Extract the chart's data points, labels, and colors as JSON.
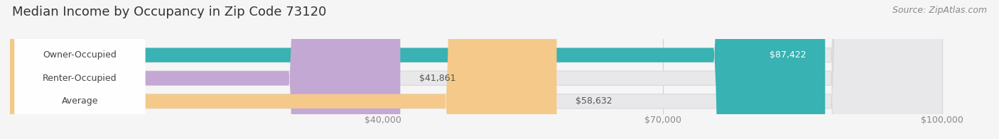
{
  "title": "Median Income by Occupancy in Zip Code 73120",
  "source": "Source: ZipAtlas.com",
  "categories": [
    "Owner-Occupied",
    "Renter-Occupied",
    "Average"
  ],
  "values": [
    87422,
    41861,
    58632
  ],
  "labels": [
    "$87,422",
    "$41,861",
    "$58,632"
  ],
  "label_inside": [
    true,
    false,
    false
  ],
  "bar_colors": [
    "#38b2b2",
    "#c4a8d4",
    "#f5c98a"
  ],
  "xlim_max": 105000,
  "data_max": 100000,
  "xticks": [
    40000,
    70000,
    100000
  ],
  "xticklabels": [
    "$40,000",
    "$70,000",
    "$100,000"
  ],
  "title_fontsize": 13,
  "source_fontsize": 9,
  "label_fontsize": 9,
  "cat_fontsize": 9,
  "tick_fontsize": 9,
  "bar_height": 0.62,
  "bar_gap": 0.38,
  "background_color": "#f5f5f5",
  "bar_bg_color": "#e8e8ea",
  "bar_bg_border": "#d8d8da",
  "white_label_bg": "#ffffff",
  "label_inside_color": "#ffffff",
  "label_outside_color": "#555555",
  "cat_text_color": "#444444",
  "title_color": "#333333",
  "source_color": "#888888",
  "tick_color": "#888888",
  "gridline_color": "#cccccc"
}
